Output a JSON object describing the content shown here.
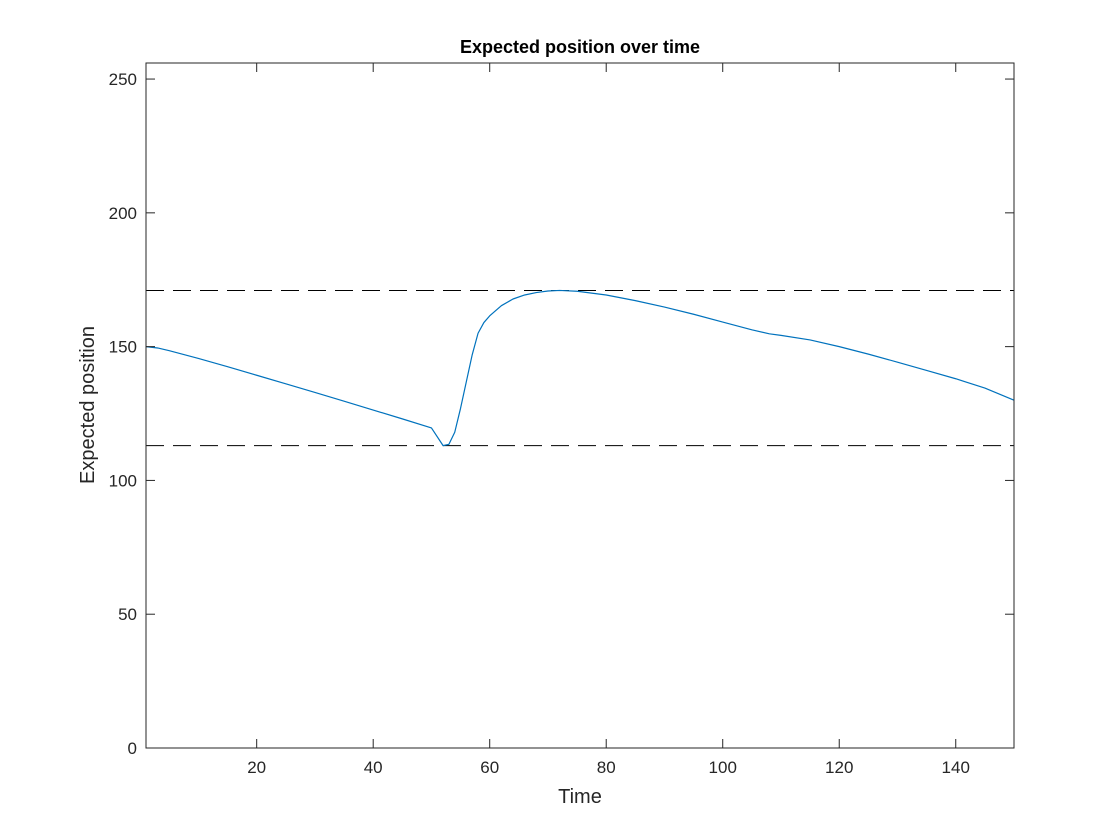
{
  "chart_data": {
    "type": "line",
    "title": "Expected position over time",
    "xlabel": "Time",
    "ylabel": "Expected position",
    "xlim": [
      1,
      150
    ],
    "ylim": [
      0,
      256
    ],
    "xticks": [
      20,
      40,
      60,
      80,
      100,
      120,
      140
    ],
    "yticks": [
      0,
      50,
      100,
      150,
      200,
      250
    ],
    "grid": false,
    "legend": "none",
    "series": [
      {
        "color": "#0072BD",
        "x": [
          1,
          3,
          5,
          10,
          15,
          20,
          25,
          30,
          35,
          40,
          45,
          50,
          52,
          53,
          54,
          55,
          56,
          57,
          58,
          59,
          60,
          62,
          64,
          66,
          68,
          70,
          72,
          75,
          80,
          85,
          90,
          95,
          100,
          105,
          108,
          110,
          115,
          120,
          125,
          130,
          135,
          140,
          145,
          150
        ],
        "y": [
          150,
          149.5,
          148.5,
          145.6,
          142.5,
          139.3,
          136.1,
          132.9,
          129.6,
          126.3,
          123,
          119.6,
          113,
          113.5,
          118,
          127,
          137,
          147,
          155,
          159,
          161.5,
          165.3,
          167.8,
          169.3,
          170.2,
          170.8,
          171,
          170.7,
          169.3,
          167.2,
          164.8,
          162.1,
          159.2,
          156.3,
          154.8,
          154.2,
          152.5,
          150,
          147.2,
          144.2,
          141.1,
          138,
          134.5,
          130
        ]
      }
    ],
    "reference_lines": [
      {
        "y": 171,
        "style": "dashed",
        "color": "#000000"
      },
      {
        "y": 113,
        "style": "dashed",
        "color": "#000000"
      }
    ]
  }
}
